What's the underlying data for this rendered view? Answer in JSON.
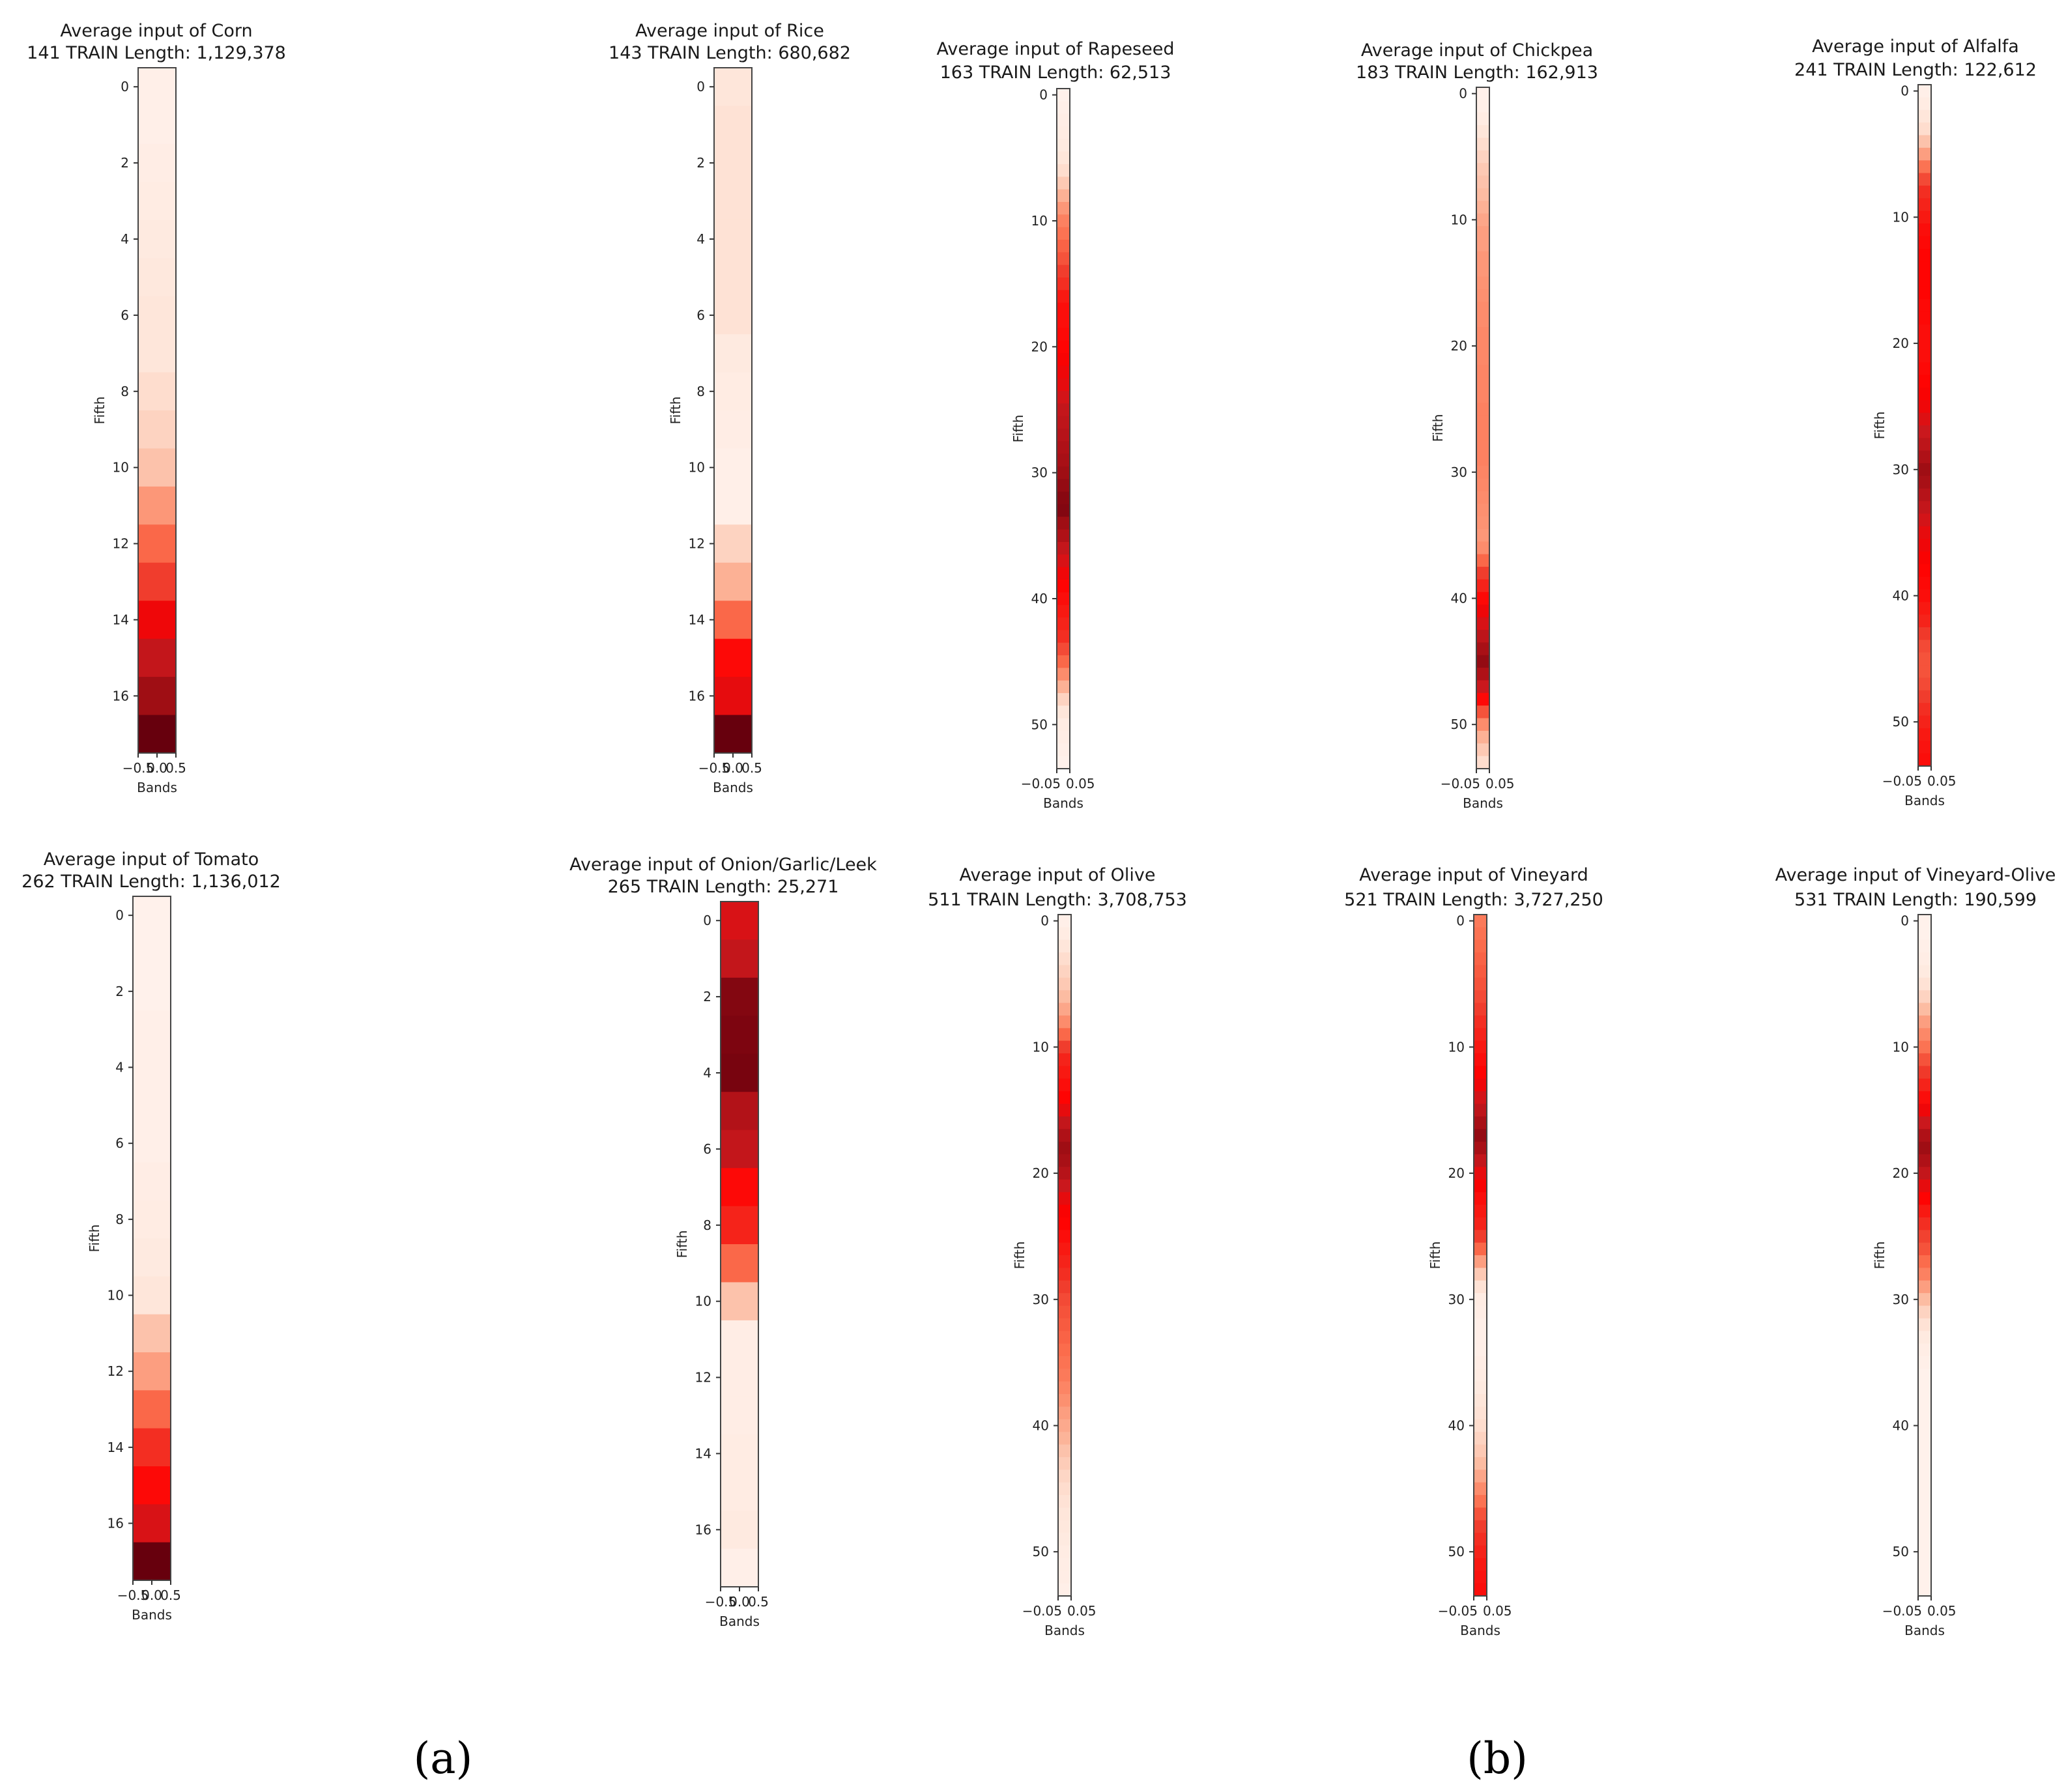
{
  "colormap": {
    "name": "Reds",
    "stops": [
      "#fff5f0",
      "#fee0d2",
      "#fcbba1",
      "#fc9272",
      "#fb6a4a",
      "#ef3b2c",
      "#ff0000",
      "#cb181d",
      "#a50f15",
      "#67000d"
    ]
  },
  "panel_labels": [
    {
      "text": "(a)"
    },
    {
      "text": "(b)"
    }
  ],
  "chart_data": [
    {
      "type": "heatmap",
      "id": "corn",
      "title_line1": "Average input of Corn",
      "title_line2": "141 TRAIN Length: 1,129,378",
      "xlabel": "Bands",
      "ylabel": "Fifth",
      "xticks": [
        "−0.5",
        "0.0",
        "0.5"
      ],
      "yticks": [
        0,
        2,
        4,
        6,
        8,
        10,
        12,
        14,
        16
      ],
      "rows": 18,
      "values": [
        0.03,
        0.03,
        0.04,
        0.05,
        0.06,
        0.07,
        0.08,
        0.08,
        0.12,
        0.15,
        0.2,
        0.32,
        0.45,
        0.55,
        0.7,
        0.8,
        0.9,
        1.0
      ]
    },
    {
      "type": "heatmap",
      "id": "rice",
      "title_line1": "Average input of Rice",
      "title_line2": "143 TRAIN Length: 680,682",
      "xlabel": "Bands",
      "ylabel": "Fifth",
      "xticks": [
        "−0.5",
        "0.0",
        "0.5"
      ],
      "yticks": [
        0,
        2,
        4,
        6,
        8,
        10,
        12,
        14,
        16
      ],
      "rows": 18,
      "values": [
        0.08,
        0.1,
        0.1,
        0.1,
        0.1,
        0.1,
        0.1,
        0.06,
        0.05,
        0.04,
        0.03,
        0.03,
        0.15,
        0.25,
        0.45,
        0.65,
        0.72,
        1.0
      ]
    },
    {
      "type": "heatmap",
      "id": "rapeseed",
      "title_line1": "Average input of Rapeseed",
      "title_line2": "163 TRAIN Length: 62,513",
      "xlabel": "Bands",
      "ylabel": "Fifth",
      "xticks": [
        "−0.05",
        "0.05"
      ],
      "yticks": [
        0,
        10,
        20,
        30,
        40,
        50
      ],
      "rows": 54,
      "values": [
        0.02,
        0.03,
        0.04,
        0.05,
        0.06,
        0.08,
        0.12,
        0.18,
        0.25,
        0.32,
        0.38,
        0.42,
        0.46,
        0.5,
        0.55,
        0.58,
        0.62,
        0.64,
        0.64,
        0.65,
        0.66,
        0.68,
        0.7,
        0.72,
        0.76,
        0.8,
        0.82,
        0.84,
        0.86,
        0.88,
        0.9,
        0.92,
        0.94,
        0.95,
        0.9,
        0.86,
        0.8,
        0.75,
        0.7,
        0.66,
        0.64,
        0.62,
        0.6,
        0.58,
        0.52,
        0.45,
        0.35,
        0.25,
        0.15,
        0.08,
        0.05,
        0.04,
        0.03,
        0.02
      ]
    },
    {
      "type": "heatmap",
      "id": "chickpea",
      "title_line1": "Average input of Chickpea",
      "title_line2": "183 TRAIN Length: 162,913",
      "xlabel": "Bands",
      "ylabel": "Fifth",
      "xticks": [
        "−0.05",
        "0.05"
      ],
      "yticks": [
        0,
        10,
        20,
        30,
        40,
        50
      ],
      "rows": 54,
      "values": [
        0.02,
        0.03,
        0.05,
        0.08,
        0.12,
        0.15,
        0.18,
        0.2,
        0.22,
        0.25,
        0.28,
        0.3,
        0.3,
        0.32,
        0.32,
        0.33,
        0.34,
        0.35,
        0.35,
        0.36,
        0.36,
        0.36,
        0.37,
        0.37,
        0.37,
        0.38,
        0.38,
        0.38,
        0.38,
        0.38,
        0.37,
        0.36,
        0.35,
        0.34,
        0.33,
        0.32,
        0.35,
        0.45,
        0.55,
        0.6,
        0.65,
        0.7,
        0.75,
        0.82,
        0.88,
        0.92,
        0.86,
        0.78,
        0.65,
        0.5,
        0.35,
        0.25,
        0.18,
        0.12
      ]
    },
    {
      "type": "heatmap",
      "id": "alfalfa",
      "title_line1": "Average input of Alfalfa",
      "title_line2": "241 TRAIN Length: 122,612",
      "xlabel": "Bands",
      "ylabel": "Fifth",
      "xticks": [
        "−0.05",
        "0.05"
      ],
      "yticks": [
        0,
        10,
        20,
        30,
        40,
        50
      ],
      "rows": 54,
      "values": [
        0.03,
        0.05,
        0.08,
        0.12,
        0.2,
        0.3,
        0.42,
        0.52,
        0.58,
        0.6,
        0.62,
        0.64,
        0.65,
        0.66,
        0.66,
        0.66,
        0.66,
        0.65,
        0.65,
        0.64,
        0.64,
        0.64,
        0.65,
        0.66,
        0.68,
        0.7,
        0.74,
        0.78,
        0.82,
        0.86,
        0.9,
        0.88,
        0.84,
        0.8,
        0.76,
        0.72,
        0.7,
        0.68,
        0.66,
        0.65,
        0.64,
        0.62,
        0.6,
        0.56,
        0.52,
        0.5,
        0.5,
        0.52,
        0.55,
        0.58,
        0.6,
        0.62,
        0.63,
        0.64
      ]
    },
    {
      "type": "heatmap",
      "id": "tomato",
      "title_line1": "Average input of Tomato",
      "title_line2": "262 TRAIN Length: 1,136,012",
      "xlabel": "Bands",
      "ylabel": "Fifth",
      "xticks": [
        "−0.5",
        "0.0",
        "0.5"
      ],
      "yticks": [
        0,
        2,
        4,
        6,
        8,
        10,
        12,
        14,
        16
      ],
      "rows": 18,
      "values": [
        0.02,
        0.02,
        0.02,
        0.03,
        0.03,
        0.03,
        0.03,
        0.04,
        0.05,
        0.06,
        0.08,
        0.2,
        0.3,
        0.45,
        0.58,
        0.65,
        0.75,
        1.0
      ]
    },
    {
      "type": "heatmap",
      "id": "onion",
      "title_line1": "Average input of Onion/Garlic/Leek",
      "title_line2": "265 TRAIN Length: 25,271",
      "xlabel": "Bands",
      "ylabel": "Fifth",
      "xticks": [
        "−0.5",
        "0.0",
        "0.5"
      ],
      "yticks": [
        0,
        2,
        4,
        6,
        8,
        10,
        12,
        14,
        16
      ],
      "rows": 18,
      "values": [
        0.75,
        0.8,
        0.95,
        0.96,
        0.97,
        0.85,
        0.8,
        0.65,
        0.6,
        0.45,
        0.2,
        0.04,
        0.04,
        0.04,
        0.05,
        0.05,
        0.06,
        0.03
      ]
    },
    {
      "type": "heatmap",
      "id": "olive",
      "title_line1": "Average input of Olive",
      "title_line2": "511 TRAIN Length: 3,708,753",
      "xlabel": "Bands",
      "ylabel": "Fifth",
      "xticks": [
        "−0.05",
        "0.05"
      ],
      "yticks": [
        0,
        10,
        20,
        30,
        40,
        50
      ],
      "rows": 54,
      "values": [
        0.03,
        0.05,
        0.08,
        0.12,
        0.15,
        0.18,
        0.22,
        0.28,
        0.35,
        0.45,
        0.55,
        0.6,
        0.62,
        0.64,
        0.66,
        0.72,
        0.8,
        0.86,
        0.9,
        0.88,
        0.84,
        0.78,
        0.72,
        0.68,
        0.66,
        0.64,
        0.62,
        0.6,
        0.58,
        0.55,
        0.52,
        0.5,
        0.48,
        0.46,
        0.44,
        0.42,
        0.4,
        0.37,
        0.34,
        0.3,
        0.27,
        0.24,
        0.2,
        0.17,
        0.14,
        0.12,
        0.1,
        0.08,
        0.07,
        0.06,
        0.05,
        0.04,
        0.04,
        0.03
      ]
    },
    {
      "type": "heatmap",
      "id": "vineyard",
      "title_line1": "Average input of Vineyard",
      "title_line2": "521 TRAIN Length: 3,727,250",
      "xlabel": "Bands",
      "ylabel": "Fifth",
      "xticks": [
        "−0.05",
        "0.05"
      ],
      "yticks": [
        0,
        10,
        20,
        30,
        40,
        50
      ],
      "rows": 54,
      "values": [
        0.4,
        0.42,
        0.44,
        0.46,
        0.48,
        0.5,
        0.52,
        0.55,
        0.58,
        0.6,
        0.62,
        0.64,
        0.66,
        0.7,
        0.76,
        0.82,
        0.88,
        0.92,
        0.88,
        0.8,
        0.72,
        0.68,
        0.64,
        0.62,
        0.6,
        0.55,
        0.45,
        0.3,
        0.18,
        0.1,
        0.05,
        0.04,
        0.03,
        0.03,
        0.03,
        0.04,
        0.05,
        0.06,
        0.08,
        0.1,
        0.12,
        0.15,
        0.18,
        0.22,
        0.28,
        0.35,
        0.42,
        0.5,
        0.55,
        0.58,
        0.6,
        0.62,
        0.63,
        0.64
      ]
    },
    {
      "type": "heatmap",
      "id": "vineyard_olive",
      "title_line1": "Average input of Vineyard-Olive",
      "title_line2": "531 TRAIN Length: 190,599",
      "xlabel": "Bands",
      "ylabel": "Fifth",
      "xticks": [
        "−0.05",
        "0.05"
      ],
      "yticks": [
        0,
        10,
        20,
        30,
        40,
        50
      ],
      "rows": 54,
      "values": [
        0.02,
        0.02,
        0.03,
        0.04,
        0.06,
        0.1,
        0.15,
        0.22,
        0.3,
        0.36,
        0.42,
        0.5,
        0.56,
        0.6,
        0.64,
        0.7,
        0.78,
        0.86,
        0.9,
        0.86,
        0.8,
        0.72,
        0.66,
        0.62,
        0.58,
        0.54,
        0.5,
        0.44,
        0.38,
        0.3,
        0.22,
        0.15,
        0.1,
        0.06,
        0.04,
        0.03,
        0.02,
        0.02,
        0.02,
        0.02,
        0.02,
        0.02,
        0.02,
        0.02,
        0.02,
        0.02,
        0.02,
        0.02,
        0.02,
        0.02,
        0.02,
        0.02,
        0.02,
        0.02
      ]
    }
  ]
}
